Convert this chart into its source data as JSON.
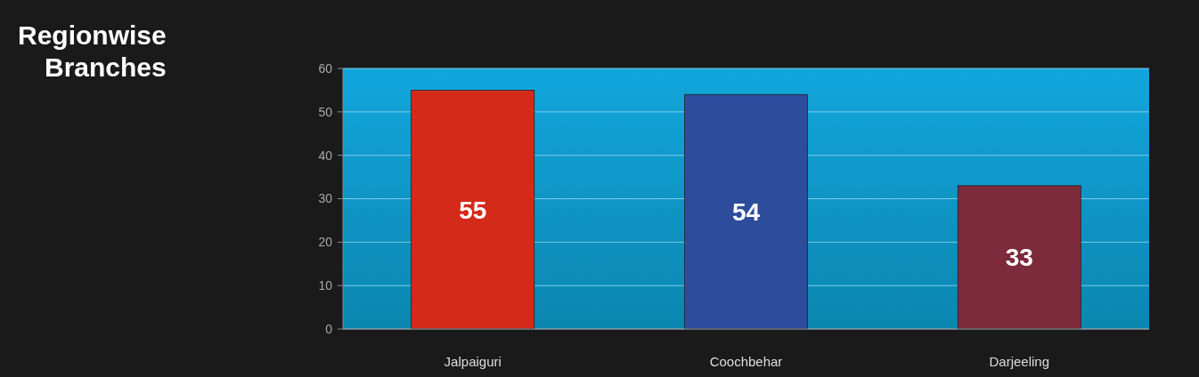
{
  "chart_data": {
    "type": "bar",
    "title": "Regionwise Branches",
    "categories": [
      "Jalpaiguri",
      "Coochbehar",
      "Darjeeling"
    ],
    "values": [
      55,
      54,
      33
    ],
    "colors": [
      "#d42a1a",
      "#2e4c9c",
      "#7c2a3c"
    ],
    "ylim": [
      0,
      60
    ],
    "yticks": [
      0,
      10,
      20,
      30,
      40,
      50,
      60
    ],
    "grid": "y",
    "data_labels": true
  }
}
